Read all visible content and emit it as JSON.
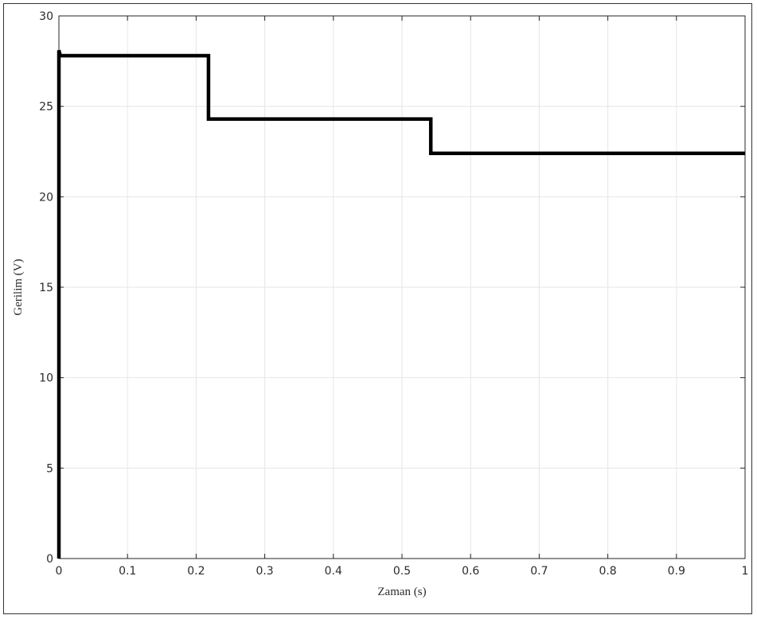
{
  "chart_data": {
    "type": "line",
    "title": "",
    "xlabel": "Zaman (s)",
    "ylabel": "Gerilim (V)",
    "xlim": [
      0,
      1
    ],
    "ylim": [
      0,
      30
    ],
    "xticks": [
      0,
      0.1,
      0.2,
      0.3,
      0.4,
      0.5,
      0.6,
      0.7,
      0.8,
      0.9,
      1
    ],
    "xtick_labels": [
      "0",
      "0.1",
      "0.2",
      "0.3",
      "0.4",
      "0.5",
      "0.6",
      "0.7",
      "0.8",
      "0.9",
      "1"
    ],
    "yticks": [
      0,
      5,
      10,
      15,
      20,
      25,
      30
    ],
    "ytick_labels": [
      "0",
      "5",
      "10",
      "15",
      "20",
      "25",
      "30"
    ],
    "grid": true,
    "legend": "none",
    "series": [
      {
        "color": "#000000",
        "x": [
          0,
          0,
          0.002,
          0.218,
          0.218,
          0.542,
          0.542,
          1.0
        ],
        "y": [
          0,
          28.1,
          27.8,
          27.8,
          24.3,
          24.3,
          22.4,
          22.4
        ]
      }
    ]
  }
}
